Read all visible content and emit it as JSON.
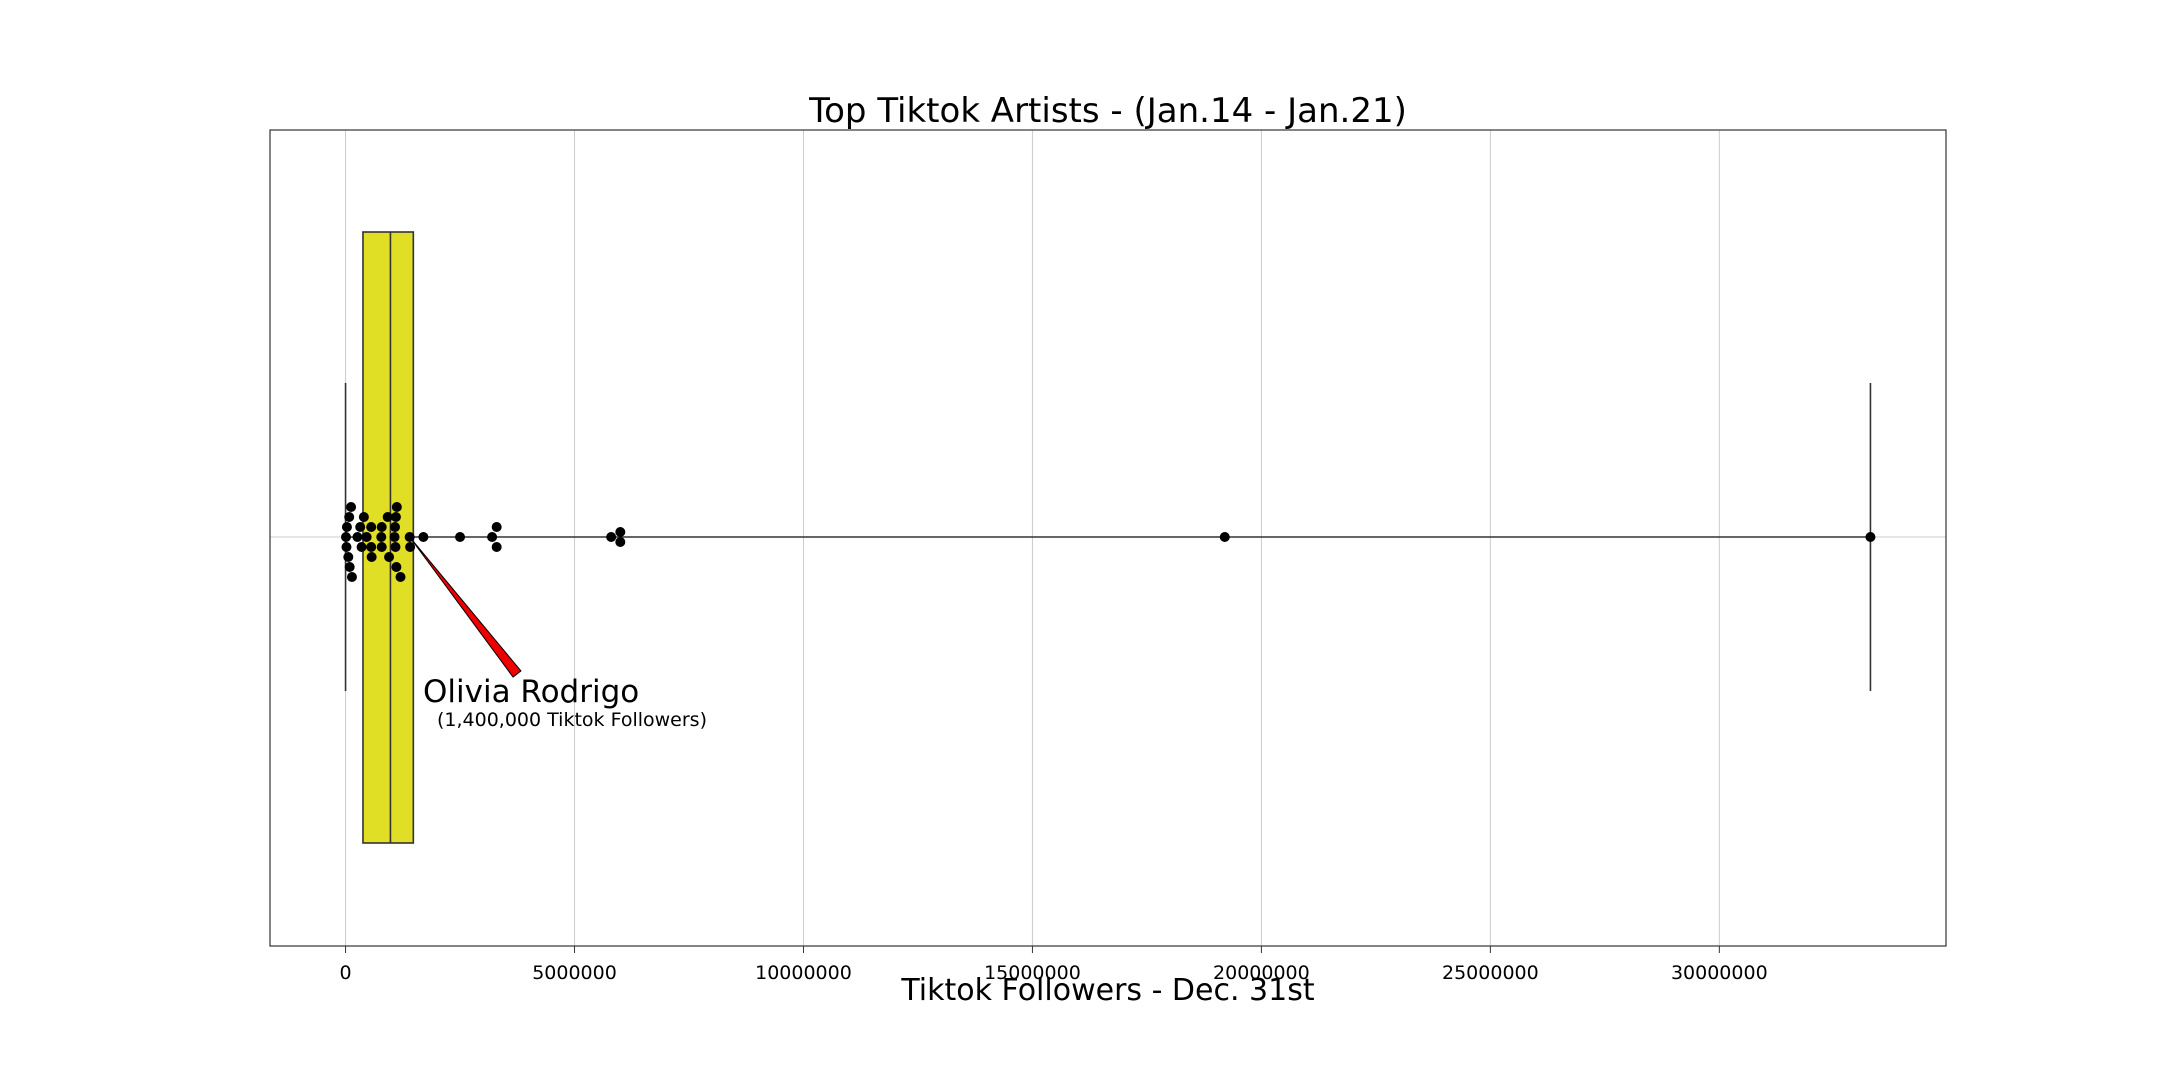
{
  "chart_data": {
    "type": "box",
    "title": "Top Tiktok Artists - (Jan.14 - Jan.21)",
    "xlabel": "Tiktok Followers - Dec. 31st",
    "ylabel": "",
    "xlim": [
      -1650000,
      34950000
    ],
    "xticks": [
      0,
      5000000,
      10000000,
      15000000,
      20000000,
      25000000,
      30000000
    ],
    "xtick_labels": [
      "0",
      "5000000",
      "10000000",
      "15000000",
      "20000000",
      "25000000",
      "30000000"
    ],
    "grid": true,
    "box": {
      "whisker_low": 0,
      "q1": 380000,
      "median": 980000,
      "q3": 1480000,
      "whisker_high": 33300000,
      "fill": "#e0df26",
      "edge": "#333333"
    },
    "points": [
      {
        "x": 10000,
        "jitter": 0
      },
      {
        "x": 20000,
        "jitter": -1
      },
      {
        "x": 30000,
        "jitter": 1
      },
      {
        "x": 60000,
        "jitter": -2
      },
      {
        "x": 80000,
        "jitter": 2
      },
      {
        "x": 90000,
        "jitter": -3
      },
      {
        "x": 120000,
        "jitter": 3
      },
      {
        "x": 140000,
        "jitter": -4
      },
      {
        "x": 260000,
        "jitter": 0
      },
      {
        "x": 320000,
        "jitter": 1
      },
      {
        "x": 350000,
        "jitter": -1
      },
      {
        "x": 400000,
        "jitter": 2
      },
      {
        "x": 460000,
        "jitter": 0
      },
      {
        "x": 560000,
        "jitter": 1
      },
      {
        "x": 560000,
        "jitter": -1
      },
      {
        "x": 570000,
        "jitter": -2
      },
      {
        "x": 780000,
        "jitter": 0
      },
      {
        "x": 790000,
        "jitter": 1
      },
      {
        "x": 790000,
        "jitter": -1
      },
      {
        "x": 920000,
        "jitter": 2
      },
      {
        "x": 950000,
        "jitter": -2
      },
      {
        "x": 1070000,
        "jitter": 0
      },
      {
        "x": 1080000,
        "jitter": 1
      },
      {
        "x": 1090000,
        "jitter": -1
      },
      {
        "x": 1100000,
        "jitter": 2
      },
      {
        "x": 1110000,
        "jitter": -3
      },
      {
        "x": 1120000,
        "jitter": 3
      },
      {
        "x": 1200000,
        "jitter": -4
      },
      {
        "x": 1400000,
        "jitter": 0
      },
      {
        "x": 1410000,
        "jitter": -1
      },
      {
        "x": 1700000,
        "jitter": 0
      },
      {
        "x": 2500000,
        "jitter": 0
      },
      {
        "x": 3200000,
        "jitter": 0
      },
      {
        "x": 3300000,
        "jitter": 1
      },
      {
        "x": 3300000,
        "jitter": -1
      },
      {
        "x": 5800000,
        "jitter": 0
      },
      {
        "x": 6000000,
        "jitter": 0.5
      },
      {
        "x": 6000000,
        "jitter": -0.5
      },
      {
        "x": 19200000,
        "jitter": 0
      },
      {
        "x": 33300000,
        "jitter": 0
      }
    ],
    "annotation": {
      "label": "Olivia Rodrigo",
      "sublabel": "(1,400,000 Tiktok Followers)",
      "value": 1400000,
      "arrow_color": "#ee0000"
    }
  }
}
